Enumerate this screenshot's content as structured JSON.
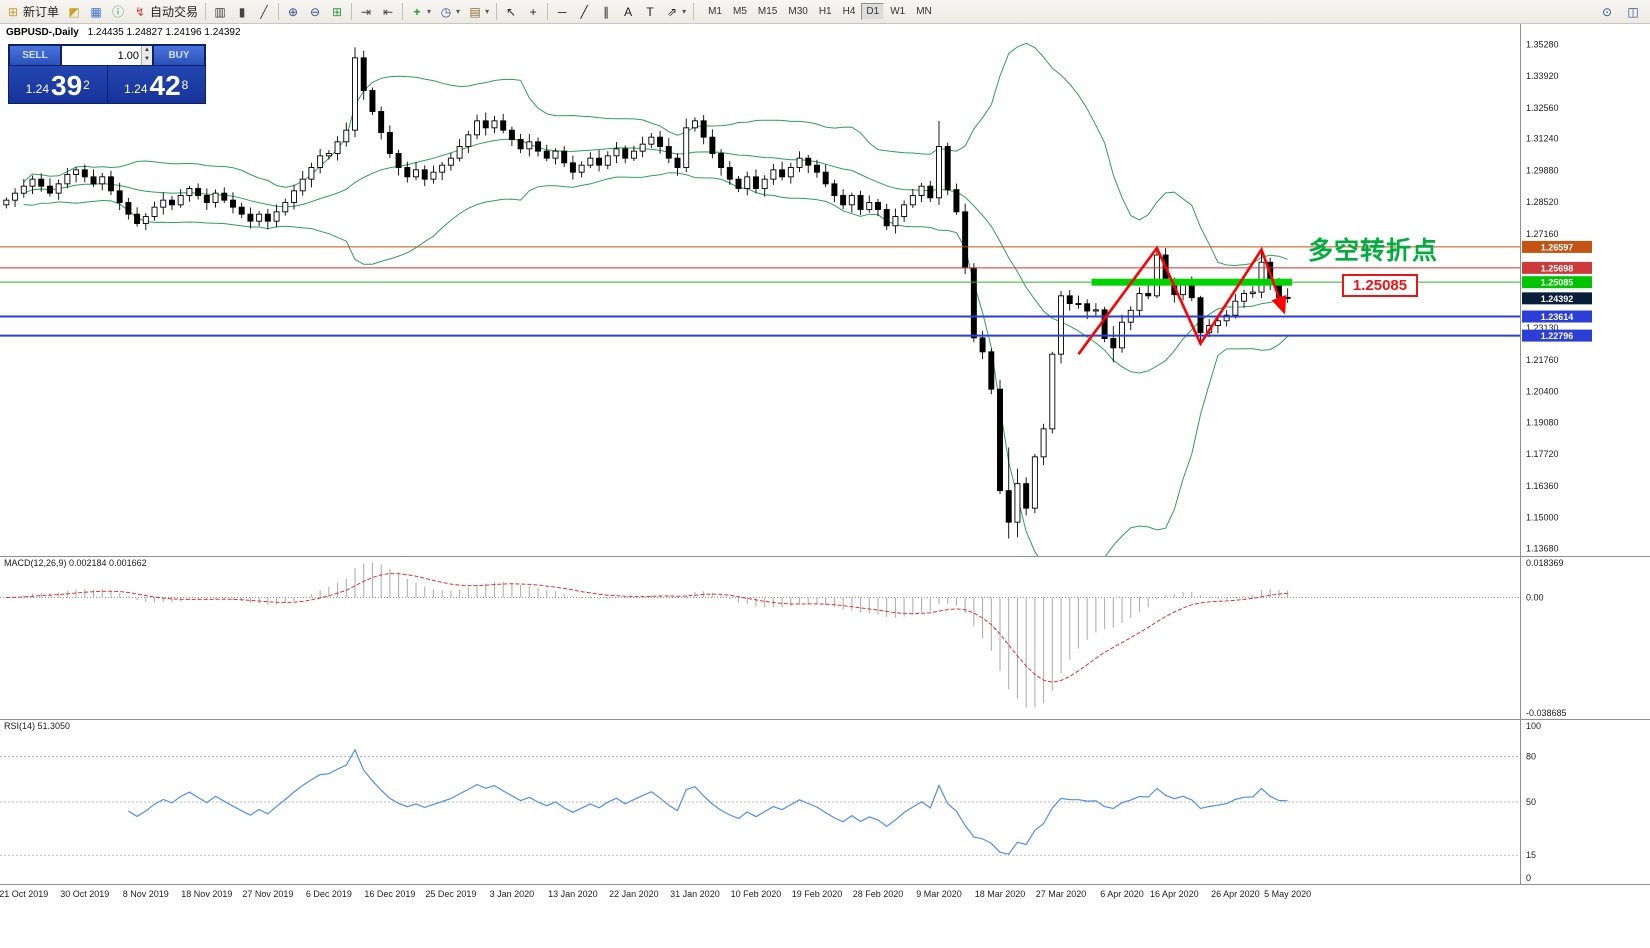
{
  "toolbar": {
    "groups": [
      {
        "items": [
          {
            "name": "new-order-button",
            "icon": "new-order-icon",
            "glyph": "⊞",
            "color": "#caa227",
            "label": "新订单"
          },
          {
            "name": "styles-button",
            "icon": "styles-icon",
            "glyph": "◩",
            "color": "#caa227"
          },
          {
            "name": "profiles-button",
            "icon": "profiles-icon",
            "glyph": "▦",
            "color": "#3f6fd1"
          },
          {
            "name": "support-button",
            "icon": "support-icon",
            "glyph": "ⓘ",
            "color": "#2f9e44"
          },
          {
            "name": "autotrading-button",
            "icon": "autotrading-icon",
            "glyph": "↯",
            "color": "#d63b3b",
            "label": "自动交易"
          }
        ]
      },
      {
        "items": [
          {
            "name": "bar-chart-button",
            "icon": "bar-chart-icon",
            "glyph": "▥",
            "color": "#444444"
          },
          {
            "name": "candlestick-chart-button",
            "icon": "candlestick-chart-icon",
            "glyph": "▮",
            "color": "#444444"
          },
          {
            "name": "line-chart-button",
            "icon": "line-chart-icon",
            "glyph": "╱",
            "color": "#444444"
          }
        ]
      },
      {
        "items": [
          {
            "name": "zoom-in-button",
            "icon": "zoom-in-icon",
            "glyph": "⊕",
            "color": "#33508e"
          },
          {
            "name": "zoom-out-button",
            "icon": "zoom-out-icon",
            "glyph": "⊖",
            "color": "#33508e"
          },
          {
            "name": "tile-windows-button",
            "icon": "tile-windows-icon",
            "glyph": "⊞",
            "color": "#2f9e44"
          }
        ]
      },
      {
        "items": [
          {
            "name": "auto-scroll-button",
            "icon": "auto-scroll-icon",
            "glyph": "⇥",
            "color": "#444444"
          },
          {
            "name": "chart-shift-button",
            "icon": "chart-shift-icon",
            "glyph": "⇤",
            "color": "#444444"
          }
        ]
      },
      {
        "items": [
          {
            "name": "indicators-button",
            "icon": "indicators-icon",
            "glyph": "+",
            "color": "#1f9e2f",
            "caret": true
          },
          {
            "name": "periods-button",
            "icon": "periods-icon",
            "glyph": "◷",
            "color": "#33508e",
            "caret": true
          },
          {
            "name": "templates-button",
            "icon": "templates-icon",
            "glyph": "▤",
            "color": "#8a6d2f",
            "caret": true
          }
        ]
      },
      {
        "items": [
          {
            "name": "cursor-button",
            "icon": "cursor-icon",
            "glyph": "↖",
            "color": "#222222"
          },
          {
            "name": "crosshair-button",
            "icon": "crosshair-icon",
            "glyph": "+",
            "color": "#222222"
          }
        ]
      },
      {
        "items": [
          {
            "name": "hline-button",
            "icon": "horizontal-line-icon",
            "glyph": "─",
            "color": "#222222"
          },
          {
            "name": "trendline-button",
            "icon": "trendline-icon",
            "glyph": "╱",
            "color": "#222222"
          },
          {
            "name": "channel-button",
            "icon": "channel-icon",
            "glyph": "∥",
            "color": "#222222"
          },
          {
            "name": "text-button",
            "icon": "text-icon",
            "glyph": "A",
            "color": "#222222"
          },
          {
            "name": "label-button",
            "icon": "label-icon",
            "glyph": "T",
            "color": "#222222"
          },
          {
            "name": "shapes-button",
            "icon": "shapes-icon",
            "glyph": "⇗",
            "color": "#222222",
            "caret": true
          }
        ]
      }
    ],
    "timeframes": {
      "items": [
        {
          "label": "M1"
        },
        {
          "label": "M5"
        },
        {
          "label": "M15"
        },
        {
          "label": "M30"
        },
        {
          "label": "H1"
        },
        {
          "label": "H4"
        },
        {
          "label": "D1",
          "active": true
        },
        {
          "label": "W1"
        },
        {
          "label": "MN"
        }
      ]
    },
    "right_items": [
      {
        "name": "symbol-search-button",
        "icon": "search-icon",
        "glyph": "⊙",
        "color": "#33508e"
      },
      {
        "name": "new-window-button",
        "icon": "new-window-icon",
        "glyph": "◫",
        "color": "#33508e"
      }
    ]
  },
  "chart": {
    "header_symbol": "GBPUSD-,Daily",
    "header_ohlc": "1.24435 1.24827 1.24196 1.24392",
    "trade_panel": {
      "sell_label": "SELL",
      "buy_label": "BUY",
      "volume": "1.00",
      "sell_price_small": "1.24",
      "sell_price_big": "39",
      "sell_price_sup": "2",
      "buy_price_small": "1.24",
      "buy_price_big": "42",
      "buy_price_sup": "8"
    },
    "annotations": {
      "turning_point": {
        "text": "多空转折点",
        "color": "#00ad3c"
      },
      "price_callout": {
        "text": "1.25085",
        "color": "#ea1515"
      }
    },
    "current_price": {
      "value": 1.24392,
      "badge": "1.24392",
      "badge_bg": "#0a1f3c"
    }
  },
  "chart_data": {
    "type": "candlestick",
    "symbol": "GBPUSD-",
    "timeframe": "Daily",
    "current_ohlc": {
      "open": 1.24435,
      "high": 1.24827,
      "low": 1.24196,
      "close": 1.24392
    },
    "y_range": {
      "min": 1.1335,
      "max": 1.3615
    },
    "y_ticks": [
      {
        "label": "1.35280",
        "p": 1.3528
      },
      {
        "label": "1.33920",
        "p": 1.3392
      },
      {
        "label": "1.32560",
        "p": 1.3256
      },
      {
        "label": "1.31240",
        "p": 1.3124
      },
      {
        "label": "1.29880",
        "p": 1.2988
      },
      {
        "label": "1.28520",
        "p": 1.2852
      },
      {
        "label": "1.27160",
        "p": 1.2716
      },
      {
        "label": "1.23130",
        "p": 1.2313
      },
      {
        "label": "1.21760",
        "p": 1.2176
      },
      {
        "label": "1.20400",
        "p": 1.204
      },
      {
        "label": "1.19080",
        "p": 1.1908
      },
      {
        "label": "1.17720",
        "p": 1.1772
      },
      {
        "label": "1.16360",
        "p": 1.1636
      },
      {
        "label": "1.15000",
        "p": 1.15
      },
      {
        "label": "1.13680",
        "p": 1.1368
      }
    ],
    "x_ticks": [
      {
        "label": "21 Oct 2019",
        "i": 2
      },
      {
        "label": "30 Oct 2019",
        "i": 9
      },
      {
        "label": "8 Nov 2019",
        "i": 16
      },
      {
        "label": "18 Nov 2019",
        "i": 23
      },
      {
        "label": "27 Nov 2019",
        "i": 30
      },
      {
        "label": "6 Dec 2019",
        "i": 37
      },
      {
        "label": "16 Dec 2019",
        "i": 44
      },
      {
        "label": "25 Dec 2019",
        "i": 51
      },
      {
        "label": "3 Jan 2020",
        "i": 58
      },
      {
        "label": "13 Jan 2020",
        "i": 65
      },
      {
        "label": "22 Jan 2020",
        "i": 72
      },
      {
        "label": "31 Jan 2020",
        "i": 79
      },
      {
        "label": "10 Feb 2020",
        "i": 86
      },
      {
        "label": "19 Feb 2020",
        "i": 93
      },
      {
        "label": "28 Feb 2020",
        "i": 100
      },
      {
        "label": "9 Mar 2020",
        "i": 107
      },
      {
        "label": "18 Mar 2020",
        "i": 114
      },
      {
        "label": "27 Mar 2020",
        "i": 121
      },
      {
        "label": "6 Apr 2020",
        "i": 128
      },
      {
        "label": "16 Apr 2020",
        "i": 134
      },
      {
        "label": "26 Apr 2020",
        "i": 141
      },
      {
        "label": "5 May 2020",
        "i": 147
      }
    ],
    "candles": [
      1.286,
      1.289,
      1.292,
      1.295,
      1.292,
      1.289,
      1.293,
      1.297,
      1.299,
      1.296,
      1.293,
      1.296,
      1.29,
      1.285,
      1.28,
      1.276,
      1.279,
      1.283,
      1.286,
      1.284,
      1.288,
      1.291,
      1.288,
      1.285,
      1.289,
      1.286,
      1.283,
      1.28,
      1.277,
      1.28,
      1.277,
      1.281,
      1.285,
      1.29,
      1.295,
      1.3,
      1.305,
      1.306,
      1.311,
      1.316,
      [
        1.316,
        1.3515,
        1.313,
        1.347
      ],
      [
        1.347,
        1.35,
        1.329,
        1.333
      ],
      1.324,
      1.315,
      1.306,
      1.3,
      1.296,
      1.299,
      1.295,
      1.298,
      1.301,
      1.304,
      1.309,
      1.314,
      1.32,
      1.317,
      1.32,
      1.316,
      1.312,
      1.308,
      1.311,
      1.307,
      1.304,
      1.307,
      1.302,
      1.298,
      1.301,
      1.304,
      1.301,
      1.305,
      1.308,
      1.304,
      1.307,
      1.31,
      1.313,
      1.309,
      1.304,
      1.3,
      [
        1.3,
        1.321,
        1.298,
        1.317
      ],
      1.32,
      1.313,
      1.306,
      1.3,
      1.295,
      1.291,
      1.296,
      1.291,
      1.295,
      1.299,
      1.296,
      1.3,
      1.304,
      1.301,
      1.298,
      1.293,
      1.288,
      1.284,
      1.288,
      1.282,
      1.285,
      1.282,
      1.275,
      1.279,
      1.284,
      1.288,
      1.292,
      1.287,
      [
        1.287,
        1.32,
        1.284,
        1.309
      ],
      1.2905,
      1.281,
      1.257,
      1.227,
      1.221,
      1.205,
      [
        1.205,
        1.209,
        1.16,
        1.1615
      ],
      [
        1.1615,
        1.18,
        1.141,
        1.148
      ],
      [
        1.148,
        1.171,
        1.1415,
        1.1645
      ],
      1.154,
      1.176,
      1.188,
      [
        1.188,
        1.221,
        1.186,
        1.22
      ],
      [
        1.22,
        1.247,
        1.216,
        1.245
      ],
      1.2417,
      1.2416,
      1.2385,
      1.239,
      1.2267,
      [
        1.2267,
        1.232,
        1.2165,
        1.2227
      ],
      1.2337,
      1.2388,
      1.246,
      1.245,
      [
        1.245,
        1.2648,
        1.244,
        1.2625
      ],
      1.2514,
      1.2455,
      1.25,
      1.2442,
      [
        1.2442,
        1.245,
        1.2247,
        1.2292
      ],
      1.2323,
      1.2343,
      1.2367,
      1.2427,
      1.246,
      1.2466,
      [
        1.2466,
        1.2643,
        1.244,
        1.2594
      ],
      1.2498,
      1.2442,
      [
        1.24435,
        1.24827,
        1.24196,
        1.24392
      ]
    ],
    "levels": [
      {
        "price": 1.26597,
        "color": "#c25312",
        "badge": "1.26597",
        "badge_bg": "#c25312",
        "width": 1
      },
      {
        "price": 1.25698,
        "color": "#cc3333",
        "badge": "1.25698",
        "badge_bg": "#cc3a3a",
        "width": 1
      },
      {
        "price": 1.25085,
        "color": "#2db82d",
        "badge": "1.25085",
        "badge_bg": "#00c400",
        "width": 1
      },
      {
        "price": 1.23614,
        "color": "#2b3ed6",
        "badge": "1.23614",
        "badge_bg": "#2b3ed6",
        "width": 2
      },
      {
        "price": 1.22796,
        "color": "#2b3ed6",
        "badge": "1.22796",
        "badge_bg": "#2b3ed6",
        "width": 2
      }
    ],
    "objects": {
      "green_bar": {
        "price": 1.25085,
        "from": 125,
        "to": 148,
        "color": "#00d300",
        "thickness": 7
      },
      "zigzag": {
        "color": "#ff0000",
        "points": [
          [
            123,
            1.22
          ],
          [
            132,
            1.2655
          ],
          [
            137,
            1.2245
          ],
          [
            144,
            1.2648
          ],
          [
            146.6,
            1.238
          ]
        ]
      }
    },
    "indicators": {
      "bollinger": {
        "period": 20,
        "deviation": 2,
        "color": "#2e9e5b"
      },
      "macd": {
        "label": "MACD(12,26,9) 0.002184 0.001662",
        "fast": 12,
        "slow": 26,
        "signal": 9,
        "value": "0.002184",
        "signal_value": "0.001662",
        "axis_top": "0.018369",
        "axis_zero": "0.00",
        "axis_bottom": "-0.038685",
        "hist_color": "#b0b0b0",
        "signal_color": "#e03030"
      },
      "rsi": {
        "label": "RSI(14) 51.3050",
        "period": 14,
        "value": "51.3050",
        "levels": [
          80,
          50,
          15
        ],
        "axis": [
          {
            "label": "100",
            "v": 100
          },
          {
            "label": "80",
            "v": 80
          },
          {
            "label": "50",
            "v": 50
          },
          {
            "label": "15",
            "v": 15
          },
          {
            "label": "0",
            "v": 0
          }
        ],
        "color": "#4f8fe8"
      }
    }
  }
}
